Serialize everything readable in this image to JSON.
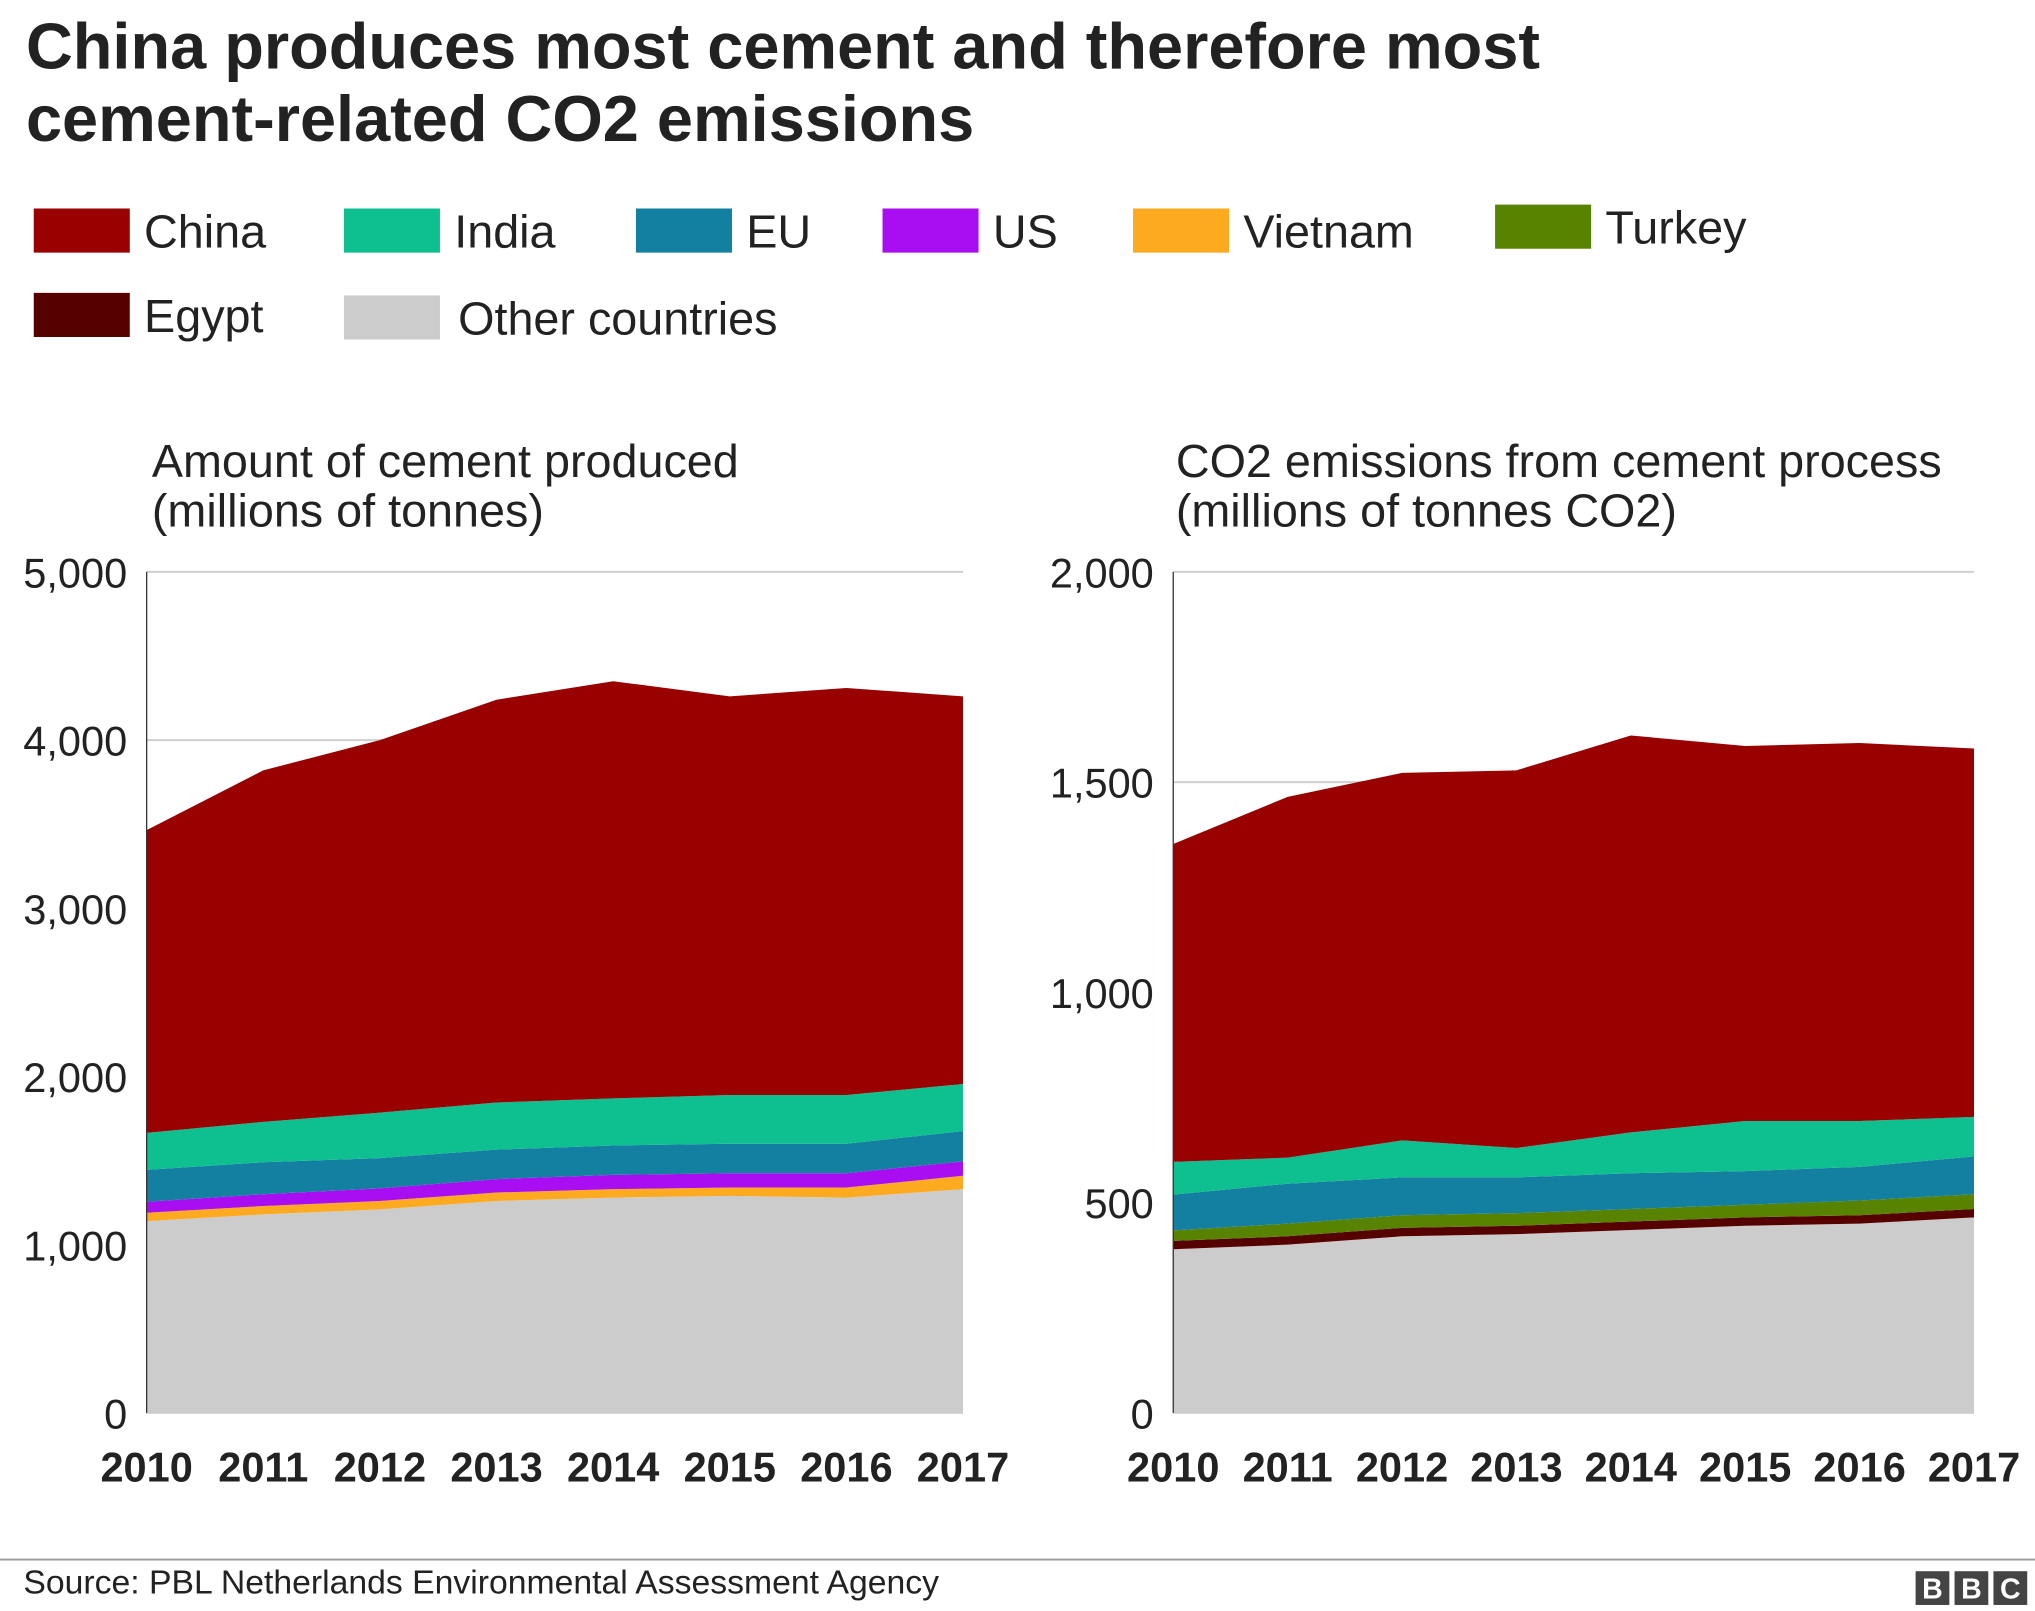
{
  "title": [
    "China produces most cement and therefore most",
    "cement-related CO2 emissions"
  ],
  "source": "Source: PBL Netherlands Environmental Assessment Agency",
  "logo": [
    "B",
    "B",
    "C"
  ],
  "chart_data": [
    {
      "type": "stacked-area",
      "title": [
        "Amount of cement produced",
        "(millions of tonnes)"
      ],
      "x": [
        2010,
        2011,
        2012,
        2013,
        2014,
        2015,
        2016,
        2017
      ],
      "xlim": [
        2010,
        2017
      ],
      "ylim": [
        0,
        5000
      ],
      "yticks": [
        0,
        {
          "value": 1000,
          "label": "1,000"
        },
        {
          "value": 2000,
          "label": "2,000"
        },
        {
          "value": 3000,
          "label": "3,000"
        },
        {
          "value": 4000,
          "label": "4,000"
        },
        {
          "value": 5000,
          "label": "5,000"
        }
      ],
      "series": [
        {
          "name": "China",
          "color": "#990000",
          "values": [
            1800,
            2090,
            2215,
            2395,
            2480,
            2370,
            2420,
            2305
          ]
        },
        {
          "name": "India",
          "color": "#0ebf8f",
          "values": [
            220,
            240,
            270,
            280,
            280,
            290,
            290,
            280
          ]
        },
        {
          "name": "EU",
          "color": "#1380a1",
          "values": [
            190,
            190,
            180,
            175,
            175,
            175,
            175,
            180
          ]
        },
        {
          "name": "US",
          "color": "#a90df2",
          "values": [
            65,
            70,
            75,
            80,
            85,
            85,
            85,
            85
          ]
        },
        {
          "name": "Vietnam",
          "color": "#fdaa20",
          "values": [
            50,
            50,
            50,
            50,
            50,
            50,
            60,
            80
          ]
        },
        {
          "name": "Other countries",
          "color": "#cccccc",
          "values": [
            1140,
            1180,
            1210,
            1260,
            1280,
            1290,
            1280,
            1330
          ]
        }
      ]
    },
    {
      "type": "stacked-area",
      "title": [
        "CO2 emissions from cement process",
        "(millions of tonnes CO2)"
      ],
      "x": [
        2010,
        2011,
        2012,
        2013,
        2014,
        2015,
        2016,
        2017
      ],
      "xlim": [
        2010,
        2017
      ],
      "ylim": [
        0,
        2000
      ],
      "yticks": [
        0,
        500,
        {
          "value": 1000,
          "label": "1,000"
        },
        {
          "value": 1500,
          "label": "1,500"
        },
        {
          "value": 2000,
          "label": "2,000"
        }
      ],
      "series": [
        {
          "name": "China",
          "color": "#990000",
          "values": [
            756,
            858,
            874,
            898,
            944,
            892,
            899,
            876
          ]
        },
        {
          "name": "India",
          "color": "#0ebf8f",
          "values": [
            78,
            62,
            88,
            70,
            97,
            119,
            109,
            94
          ]
        },
        {
          "name": "EU",
          "color": "#1380a1",
          "values": [
            85,
            95,
            90,
            85,
            85,
            80,
            80,
            90
          ]
        },
        {
          "name": "US",
          "color": "#a90df2",
          "values": [
            0,
            0,
            0,
            0,
            0,
            0,
            0,
            0
          ]
        },
        {
          "name": "Vietnam",
          "color": "#fdaa20",
          "values": [
            0,
            0,
            0,
            0,
            0,
            0,
            0,
            0
          ]
        },
        {
          "name": "Turkey",
          "color": "#588300",
          "values": [
            25,
            30,
            30,
            30,
            30,
            30,
            35,
            35
          ]
        },
        {
          "name": "Egypt",
          "color": "#570000",
          "values": [
            20,
            20,
            20,
            20,
            20,
            20,
            20,
            20
          ]
        },
        {
          "name": "Other countries",
          "color": "#cccccc",
          "values": [
            389,
            400,
            420,
            425,
            435,
            445,
            450,
            465
          ]
        }
      ]
    }
  ]
}
